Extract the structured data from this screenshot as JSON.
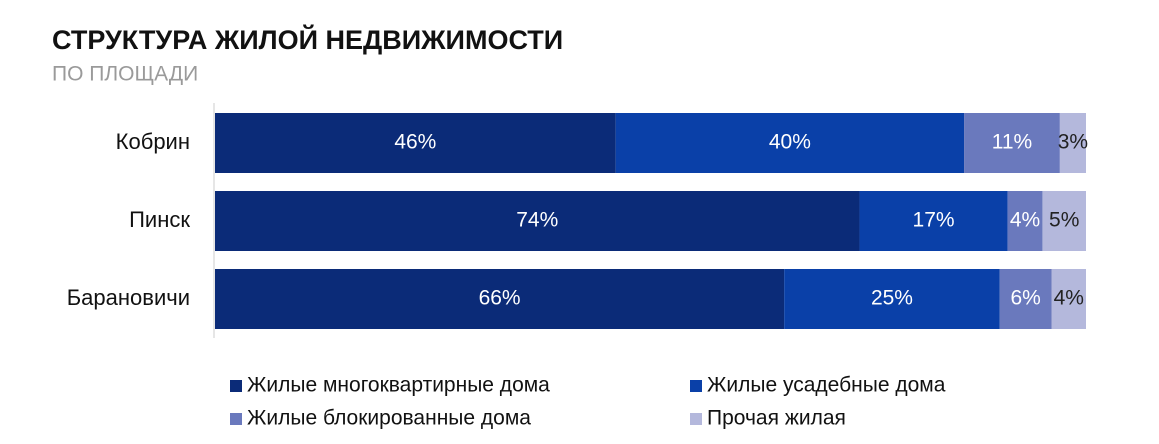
{
  "chart_data": {
    "type": "stacked-bar-horizontal",
    "title": "СТРУКТУРА ЖИЛОЙ НЕДВИЖИМОСТИ",
    "subtitle": "ПО ПЛОЩАДИ",
    "categories": [
      "Кобрин",
      "Пинск",
      "Барановичи"
    ],
    "series": [
      {
        "name": "Жилые многоквартирные дома",
        "color": "#0b2b78",
        "values": [
          46,
          74,
          66
        ],
        "value_labels": [
          "46%",
          "74%",
          "66%"
        ],
        "label_color": "#ffffff"
      },
      {
        "name": "Жилые усадебные дома",
        "color": "#0a40a8",
        "values": [
          40,
          17,
          25
        ],
        "value_labels": [
          "40%",
          "17%",
          "25%"
        ],
        "label_color": "#ffffff"
      },
      {
        "name": "Жилые блокированные дома",
        "color": "#6a79bd",
        "values": [
          11,
          4,
          6
        ],
        "value_labels": [
          "11%",
          "4%",
          "6%"
        ],
        "label_color": "#ffffff"
      },
      {
        "name": "Прочая жилая",
        "color": "#b4b8dc",
        "values": [
          3,
          5,
          4
        ],
        "value_labels": [
          "3%",
          "5%",
          "4%"
        ],
        "label_color": "#222222"
      }
    ]
  }
}
